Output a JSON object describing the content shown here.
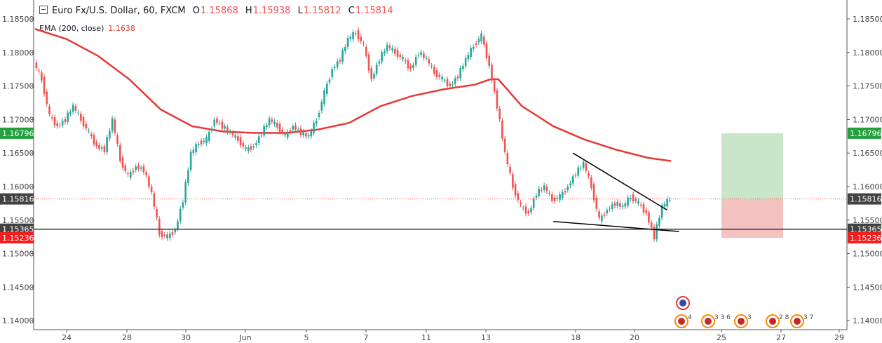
{
  "header": {
    "symbol": "Euro Fx/U.S. Dollar, 60, FXCM",
    "open_label": "O",
    "open": "1.15868",
    "high_label": "H",
    "high": "1.15938",
    "low_label": "L",
    "low": "1.15812",
    "close_label": "C",
    "close": "1.15814"
  },
  "indicator": {
    "label": "EMA (200, close)",
    "value": "1.1638"
  },
  "colors": {
    "up": "#26a69a",
    "down": "#ef5350",
    "ema": "#e53935",
    "target_zone": "#a5d6a7",
    "stop_zone": "#ef9a9a",
    "price_tag_current": "#424242",
    "price_tag_target": "#21a03c",
    "price_tag_stop": "#f21d1d",
    "support_line": "#333333"
  },
  "chart_data": {
    "type": "candlestick",
    "title": "Euro Fx/U.S. Dollar, 60, FXCM",
    "ylim": [
      1.137,
      1.187
    ],
    "y_ticks": [
      "1.18500",
      "1.18000",
      "1.17500",
      "1.17000",
      "1.16500",
      "1.16000",
      "1.15500",
      "1.15000",
      "1.14500",
      "1.14000"
    ],
    "x_ticks": [
      "24",
      "28",
      "30",
      "Jun",
      "5",
      "7",
      "11",
      "13",
      "18",
      "20",
      "25",
      "27",
      "29"
    ],
    "price_series": [
      [
        0,
        1.1785
      ],
      [
        1,
        1.176
      ],
      [
        2,
        1.1705
      ],
      [
        3,
        1.169
      ],
      [
        4,
        1.17
      ],
      [
        5,
        1.172
      ],
      [
        6,
        1.17
      ],
      [
        7,
        1.168
      ],
      [
        8,
        1.166
      ],
      [
        9,
        1.1655
      ],
      [
        10,
        1.17
      ],
      [
        11,
        1.164
      ],
      [
        12,
        1.1615
      ],
      [
        13,
        1.163
      ],
      [
        14,
        1.1625
      ],
      [
        15,
        1.159
      ],
      [
        16,
        1.153
      ],
      [
        17,
        1.1525
      ],
      [
        18,
        1.1535
      ],
      [
        19,
        1.158
      ],
      [
        20,
        1.165
      ],
      [
        21,
        1.1665
      ],
      [
        22,
        1.167
      ],
      [
        23,
        1.17
      ],
      [
        24,
        1.169
      ],
      [
        25,
        1.168
      ],
      [
        26,
        1.167
      ],
      [
        27,
        1.1655
      ],
      [
        28,
        1.166
      ],
      [
        29,
        1.168
      ],
      [
        30,
        1.17
      ],
      [
        31,
        1.169
      ],
      [
        32,
        1.1675
      ],
      [
        33,
        1.169
      ],
      [
        34,
        1.168
      ],
      [
        35,
        1.1675
      ],
      [
        36,
        1.17
      ],
      [
        37,
        1.174
      ],
      [
        38,
        1.1775
      ],
      [
        39,
        1.179
      ],
      [
        40,
        1.182
      ],
      [
        41,
        1.183
      ],
      [
        42,
        1.181
      ],
      [
        43,
        1.176
      ],
      [
        44,
        1.179
      ],
      [
        45,
        1.181
      ],
      [
        46,
        1.18
      ],
      [
        47,
        1.179
      ],
      [
        48,
        1.1775
      ],
      [
        49,
        1.18
      ],
      [
        50,
        1.179
      ],
      [
        51,
        1.177
      ],
      [
        52,
        1.176
      ],
      [
        53,
        1.175
      ],
      [
        54,
        1.1765
      ],
      [
        55,
        1.179
      ],
      [
        56,
        1.181
      ],
      [
        57,
        1.1825
      ],
      [
        58,
        1.178
      ],
      [
        59,
        1.172
      ],
      [
        60,
        1.165
      ],
      [
        61,
        1.16
      ],
      [
        62,
        1.157
      ],
      [
        63,
        1.156
      ],
      [
        64,
        1.159
      ],
      [
        65,
        1.16
      ],
      [
        66,
        1.158
      ],
      [
        67,
        1.1585
      ],
      [
        68,
        1.16
      ],
      [
        69,
        1.162
      ],
      [
        70,
        1.1635
      ],
      [
        71,
        1.16
      ],
      [
        72,
        1.155
      ],
      [
        73,
        1.1565
      ],
      [
        74,
        1.1575
      ],
      [
        75,
        1.157
      ],
      [
        76,
        1.1585
      ],
      [
        77,
        1.1575
      ],
      [
        78,
        1.156
      ],
      [
        79,
        1.1525
      ],
      [
        80,
        1.157
      ],
      [
        81,
        1.1582
      ]
    ],
    "series": [
      {
        "name": "EMA (200, close)",
        "values": [
          [
            0,
            1.1835
          ],
          [
            4,
            1.182
          ],
          [
            8,
            1.1795
          ],
          [
            12,
            1.176
          ],
          [
            16,
            1.1715
          ],
          [
            20,
            1.169
          ],
          [
            24,
            1.1682
          ],
          [
            28,
            1.168
          ],
          [
            32,
            1.168
          ],
          [
            36,
            1.1685
          ],
          [
            40,
            1.1695
          ],
          [
            44,
            1.172
          ],
          [
            48,
            1.1735
          ],
          [
            52,
            1.1745
          ],
          [
            56,
            1.1752
          ],
          [
            58,
            1.176
          ],
          [
            59,
            1.176
          ],
          [
            62,
            1.172
          ],
          [
            66,
            1.169
          ],
          [
            70,
            1.167
          ],
          [
            74,
            1.1655
          ],
          [
            78,
            1.1643
          ],
          [
            81,
            1.1638
          ]
        ]
      }
    ],
    "price_tags": [
      {
        "label": "1.16796",
        "value": 1.16796,
        "kind": "target"
      },
      {
        "label": "1.15816",
        "value": 1.15816,
        "kind": "current"
      },
      {
        "label": "1.15365",
        "value": 1.15365,
        "kind": "level"
      },
      {
        "label": "1.15236",
        "value": 1.15236,
        "kind": "stop"
      }
    ],
    "horizontal_lines": [
      {
        "value": 1.15365
      }
    ],
    "trendlines": [
      {
        "from": [
          68.5,
          1.165
        ],
        "to": [
          80.5,
          1.1565
        ]
      },
      {
        "from": [
          66.0,
          1.1548
        ],
        "to": [
          82.0,
          1.1533
        ]
      }
    ],
    "position": {
      "entry": 1.15816,
      "target": 1.16796,
      "stop": 1.15236,
      "x_start": 86,
      "x_end": 93.5
    },
    "event_icons": [
      {
        "text": "4"
      },
      {
        "text": "3 3 6"
      },
      {
        "text": "3"
      },
      {
        "text": "2 8"
      },
      {
        "text": "3 7"
      }
    ],
    "grid": false
  }
}
